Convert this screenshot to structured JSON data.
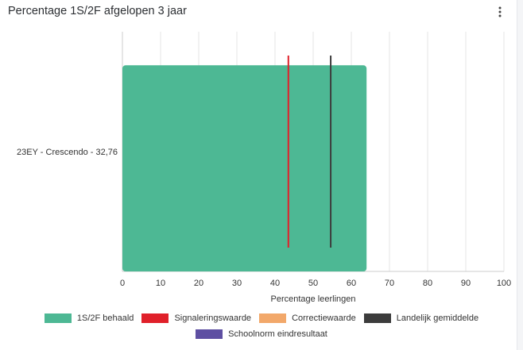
{
  "widget": {
    "title": "Percentage 1S/2F afgelopen 3 jaar",
    "menu_icon": "more-vertical-icon"
  },
  "colors": {
    "bar": "#4db894",
    "signalering": "#e0202a",
    "correctie": "#f2a86a",
    "landelijk": "#3c3c3c",
    "schoolnorm": "#5e4fa2",
    "grid": "#e4e4e4",
    "axis": "#cccccc",
    "text": "#333333"
  },
  "chart_data": {
    "type": "bar",
    "orientation": "horizontal",
    "categories": [
      "23EY - Crescendo - 32,76"
    ],
    "series": [
      {
        "name": "1S/2F behaald",
        "values": [
          64
        ]
      }
    ],
    "reference_lines": [
      {
        "name": "Signaleringswaarde",
        "value": 43.5
      },
      {
        "name": "Landelijk gemiddelde",
        "value": 54.6
      }
    ],
    "xlabel": "Percentage leerlingen",
    "xlim": [
      0,
      100
    ],
    "xticks": [
      "0",
      "10",
      "20",
      "30",
      "40",
      "50",
      "60",
      "70",
      "80",
      "90",
      "100"
    ],
    "grid": true,
    "legend_position": "bottom"
  },
  "legend": [
    {
      "label": "1S/2F behaald",
      "color": "#4db894"
    },
    {
      "label": "Signaleringswaarde",
      "color": "#e0202a"
    },
    {
      "label": "Correctiewaarde",
      "color": "#f2a86a"
    },
    {
      "label": "Landelijk gemiddelde",
      "color": "#3c3c3c"
    },
    {
      "label": "Schoolnorm eindresultaat",
      "color": "#5e4fa2"
    }
  ]
}
